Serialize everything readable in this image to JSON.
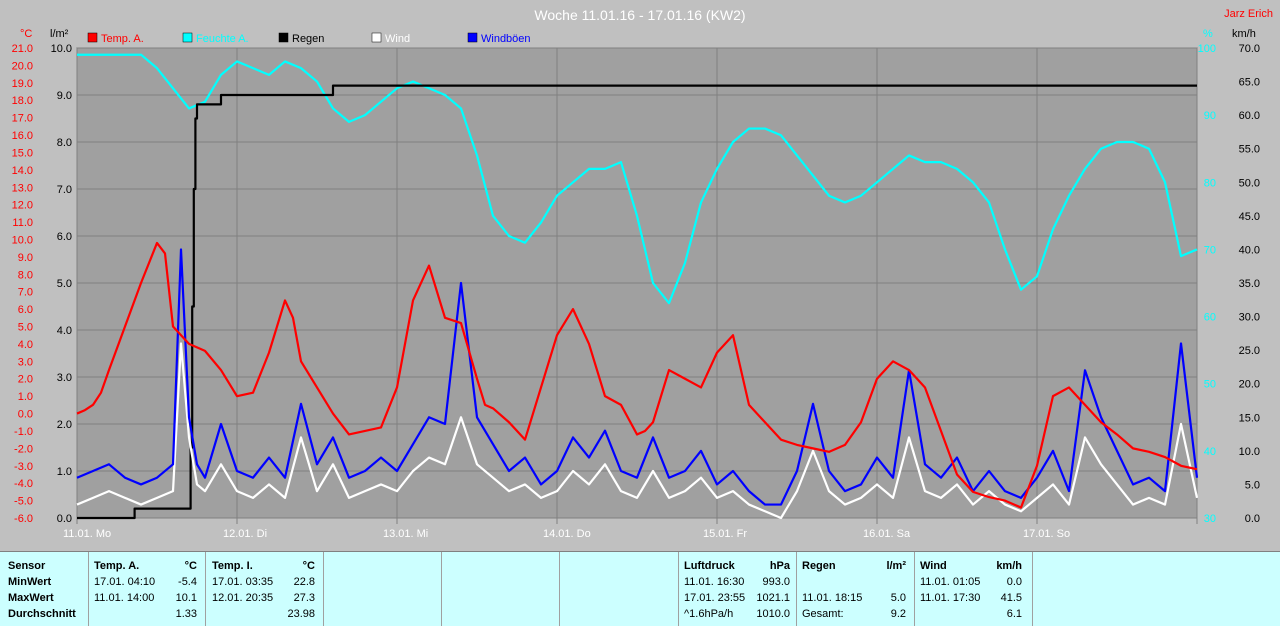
{
  "chart_data": {
    "type": "line",
    "title": "Woche 11.01.16 - 17.01.16 (KW2)",
    "author": "Jarz Erich",
    "x_labels": [
      "11.01. Mo",
      "12.01. Di",
      "13.01. Mi",
      "14.01. Do",
      "15.01. Fr",
      "16.01. Sa",
      "17.01. So"
    ],
    "axes": {
      "temp": {
        "unit": "°C",
        "ylim": [
          -6,
          21
        ],
        "ticks": [
          21,
          20,
          19,
          18,
          17,
          16,
          15,
          14,
          13,
          12,
          11,
          10,
          9,
          8,
          7,
          6,
          5,
          4,
          3,
          2,
          1,
          0,
          -1,
          -2,
          -3,
          -4,
          -5,
          -6
        ],
        "color": "#ff0000"
      },
      "rain": {
        "unit": "l/m²",
        "ylim": [
          0,
          10
        ],
        "ticks": [
          "10.0",
          "9.0",
          "8.0",
          "7.0",
          "6.0",
          "5.0",
          "4.0",
          "3.0",
          "2.0",
          "1.0",
          "0.0"
        ],
        "color": "#000000"
      },
      "humidity": {
        "unit": "%",
        "ylim": [
          30,
          100
        ],
        "ticks": [
          100,
          90,
          80,
          70,
          60,
          50,
          40,
          30
        ],
        "color": "#00ffff"
      },
      "wind": {
        "unit": "km/h",
        "ylim": [
          0,
          70
        ],
        "ticks": [
          "70.0",
          "65.0",
          "60.0",
          "55.0",
          "50.0",
          "45.0",
          "40.0",
          "35.0",
          "30.0",
          "25.0",
          "20.0",
          "15.0",
          "10.0",
          "5.0",
          "0.0"
        ],
        "color": "#000000"
      }
    },
    "legend": [
      {
        "name": "Temp. A.",
        "color": "#ff0000"
      },
      {
        "name": "Feuchte A.",
        "color": "#00ffff"
      },
      {
        "name": "Regen",
        "color": "#000000"
      },
      {
        "name": "Wind",
        "color": "#ffffff"
      },
      {
        "name": "Windböen",
        "color": "#0000ff"
      }
    ],
    "series": [
      {
        "name": "Temp. A.",
        "axis": "temp",
        "color": "#ff0000",
        "x": [
          0,
          0.05,
          0.1,
          0.15,
          0.2,
          0.3,
          0.4,
          0.5,
          0.55,
          0.6,
          0.7,
          0.8,
          0.9,
          1.0,
          1.1,
          1.2,
          1.3,
          1.35,
          1.4,
          1.5,
          1.6,
          1.7,
          1.8,
          1.9,
          2.0,
          2.1,
          2.2,
          2.3,
          2.4,
          2.5,
          2.55,
          2.6,
          2.7,
          2.8,
          2.9,
          3.0,
          3.1,
          3.2,
          3.3,
          3.4,
          3.5,
          3.55,
          3.6,
          3.7,
          3.8,
          3.9,
          4.0,
          4.1,
          4.2,
          4.3,
          4.4,
          4.5,
          4.6,
          4.7,
          4.8,
          4.9,
          5.0,
          5.1,
          5.2,
          5.3,
          5.4,
          5.5,
          5.6,
          5.7,
          5.8,
          5.9,
          6.0,
          6.1,
          6.2,
          6.3,
          6.4,
          6.5,
          6.6,
          6.7,
          6.8,
          6.9,
          7.0
        ],
        "values": [
          0.0,
          0.2,
          0.5,
          1.2,
          2.5,
          5.0,
          7.5,
          9.8,
          9.2,
          5.0,
          4.0,
          3.6,
          2.5,
          1.0,
          1.2,
          3.5,
          6.5,
          5.5,
          3.0,
          1.5,
          0.0,
          -1.2,
          -1.0,
          -0.8,
          1.5,
          6.5,
          8.5,
          5.5,
          5.2,
          2.0,
          0.5,
          0.3,
          -0.5,
          -1.5,
          1.5,
          4.5,
          6.0,
          4.0,
          1.0,
          0.5,
          -1.2,
          -1.0,
          -0.5,
          2.5,
          2.0,
          1.5,
          3.5,
          4.5,
          0.5,
          -0.5,
          -1.5,
          -1.8,
          -2.0,
          -2.2,
          -1.8,
          -0.5,
          2.0,
          3.0,
          2.5,
          1.5,
          -1.0,
          -3.5,
          -4.5,
          -4.8,
          -5.0,
          -5.4,
          -3.0,
          1.0,
          1.5,
          0.5,
          -0.5,
          -1.2,
          -2.0,
          -2.2,
          -2.5,
          -3.0,
          -3.2
        ]
      },
      {
        "name": "Feuchte A.",
        "axis": "humidity",
        "color": "#00ffff",
        "x": [
          0,
          0.1,
          0.2,
          0.3,
          0.4,
          0.5,
          0.6,
          0.7,
          0.8,
          0.9,
          1.0,
          1.1,
          1.2,
          1.3,
          1.4,
          1.5,
          1.6,
          1.7,
          1.8,
          1.9,
          2.0,
          2.1,
          2.2,
          2.3,
          2.4,
          2.5,
          2.6,
          2.7,
          2.8,
          2.9,
          3.0,
          3.1,
          3.2,
          3.3,
          3.4,
          3.5,
          3.6,
          3.7,
          3.8,
          3.9,
          4.0,
          4.1,
          4.2,
          4.3,
          4.4,
          4.5,
          4.6,
          4.7,
          4.8,
          4.9,
          5.0,
          5.1,
          5.2,
          5.3,
          5.4,
          5.5,
          5.6,
          5.7,
          5.8,
          5.9,
          6.0,
          6.1,
          6.2,
          6.3,
          6.4,
          6.5,
          6.6,
          6.7,
          6.8,
          6.9,
          7.0
        ],
        "values": [
          99,
          99,
          99,
          99,
          99,
          97,
          94,
          91,
          92,
          96,
          98,
          97,
          96,
          98,
          97,
          95,
          91,
          89,
          90,
          92,
          94,
          95,
          94,
          93,
          91,
          84,
          75,
          72,
          71,
          74,
          78,
          80,
          82,
          82,
          83,
          75,
          65,
          62,
          68,
          77,
          82,
          86,
          88,
          88,
          87,
          84,
          81,
          78,
          77,
          78,
          80,
          82,
          84,
          83,
          83,
          82,
          80,
          77,
          70,
          64,
          66,
          73,
          78,
          82,
          85,
          86,
          86,
          85,
          80,
          69,
          70
        ]
      },
      {
        "name": "Regen",
        "axis": "rain",
        "color": "#000000",
        "x": [
          0,
          0.35,
          0.36,
          0.7,
          0.71,
          0.72,
          0.73,
          0.74,
          0.75,
          0.8,
          0.9,
          1.0,
          1.1,
          1.2,
          1.3,
          1.35,
          1.5,
          1.6,
          1.7,
          1.8,
          1.9,
          2.0,
          3.0,
          4.0,
          5.0,
          6.0,
          7.0
        ],
        "values": [
          0.0,
          0.0,
          0.2,
          0.2,
          1.5,
          4.5,
          7.0,
          8.5,
          8.8,
          8.8,
          9.0,
          9.0,
          9.0,
          9.0,
          9.0,
          9.0,
          9.0,
          9.2,
          9.2,
          9.2,
          9.2,
          9.2,
          9.2,
          9.2,
          9.2,
          9.2,
          9.2
        ]
      },
      {
        "name": "Wind",
        "axis": "wind",
        "color": "#ffffff",
        "x": [
          0,
          0.1,
          0.2,
          0.3,
          0.4,
          0.5,
          0.6,
          0.65,
          0.7,
          0.75,
          0.8,
          0.9,
          1.0,
          1.1,
          1.2,
          1.3,
          1.4,
          1.5,
          1.6,
          1.7,
          1.8,
          1.9,
          2.0,
          2.1,
          2.2,
          2.3,
          2.4,
          2.5,
          2.6,
          2.7,
          2.8,
          2.9,
          3.0,
          3.1,
          3.2,
          3.3,
          3.4,
          3.5,
          3.6,
          3.7,
          3.8,
          3.9,
          4.0,
          4.1,
          4.2,
          4.3,
          4.4,
          4.5,
          4.6,
          4.7,
          4.8,
          4.9,
          5.0,
          5.1,
          5.2,
          5.3,
          5.4,
          5.5,
          5.6,
          5.7,
          5.8,
          5.9,
          6.0,
          6.1,
          6.2,
          6.3,
          6.4,
          6.5,
          6.6,
          6.7,
          6.8,
          6.9,
          7.0
        ],
        "values": [
          2,
          3,
          4,
          3,
          2,
          3,
          4,
          26,
          12,
          5,
          4,
          8,
          4,
          3,
          5,
          3,
          12,
          4,
          8,
          3,
          4,
          5,
          4,
          7,
          9,
          8,
          15,
          8,
          6,
          4,
          5,
          3,
          4,
          7,
          5,
          8,
          4,
          3,
          7,
          3,
          4,
          6,
          3,
          4,
          2,
          1,
          0,
          4,
          10,
          4,
          2,
          3,
          5,
          3,
          12,
          4,
          3,
          5,
          2,
          4,
          2,
          1,
          3,
          5,
          2,
          12,
          8,
          5,
          2,
          3,
          2,
          14,
          3
        ]
      },
      {
        "name": "Windböen",
        "axis": "wind",
        "color": "#0000ff",
        "x": [
          0,
          0.1,
          0.2,
          0.3,
          0.4,
          0.5,
          0.6,
          0.65,
          0.7,
          0.75,
          0.8,
          0.9,
          1.0,
          1.1,
          1.2,
          1.3,
          1.4,
          1.5,
          1.6,
          1.7,
          1.8,
          1.9,
          2.0,
          2.1,
          2.2,
          2.3,
          2.4,
          2.5,
          2.6,
          2.7,
          2.8,
          2.9,
          3.0,
          3.1,
          3.2,
          3.3,
          3.4,
          3.5,
          3.6,
          3.7,
          3.8,
          3.9,
          4.0,
          4.1,
          4.2,
          4.3,
          4.4,
          4.5,
          4.6,
          4.7,
          4.8,
          4.9,
          5.0,
          5.1,
          5.2,
          5.3,
          5.4,
          5.5,
          5.6,
          5.7,
          5.8,
          5.9,
          6.0,
          6.1,
          6.2,
          6.3,
          6.4,
          6.5,
          6.6,
          6.7,
          6.8,
          6.9,
          7.0
        ],
        "values": [
          6,
          7,
          8,
          6,
          5,
          6,
          8,
          40,
          15,
          8,
          6,
          14,
          7,
          6,
          9,
          6,
          17,
          8,
          12,
          6,
          7,
          9,
          7,
          11,
          15,
          14,
          35,
          15,
          11,
          7,
          9,
          5,
          7,
          12,
          9,
          13,
          7,
          6,
          12,
          6,
          7,
          10,
          5,
          7,
          4,
          2,
          2,
          7,
          17,
          7,
          4,
          5,
          9,
          6,
          22,
          8,
          6,
          9,
          4,
          7,
          4,
          3,
          6,
          10,
          4,
          22,
          15,
          10,
          5,
          6,
          4,
          26,
          6
        ]
      }
    ]
  },
  "table": {
    "sensor": {
      "header": "Sensor",
      "rows": [
        "MinWert",
        "MaxWert",
        "Durchschnitt"
      ]
    },
    "temp_a": {
      "header": "Temp. A.",
      "unit": "°C",
      "rows": [
        {
          "time": "17.01.  04:10",
          "value": "-5.4"
        },
        {
          "time": "11.01.  14:00",
          "value": "10.1"
        },
        {
          "time": "",
          "value": "1.33"
        }
      ]
    },
    "temp_i": {
      "header": "Temp. I.",
      "unit": "°C",
      "rows": [
        {
          "time": "17.01.  03:35",
          "value": "22.8"
        },
        {
          "time": "12.01.  20:35",
          "value": "27.3"
        },
        {
          "time": "",
          "value": "23.98"
        }
      ]
    },
    "luftdruck": {
      "header": "Luftdruck",
      "unit": "hPa",
      "rows": [
        {
          "time": "11.01.  16:30",
          "value": "993.0"
        },
        {
          "time": "17.01.  23:55",
          "value": "1021.1"
        },
        {
          "time": "^1.6hPa/h",
          "value": "1010.0"
        }
      ]
    },
    "regen": {
      "header": "Regen",
      "unit": "l/m²",
      "rows": [
        {
          "time": "",
          "value": ""
        },
        {
          "time": "11.01.  18:15",
          "value": "5.0"
        },
        {
          "time": "Gesamt:",
          "value": "9.2"
        }
      ]
    },
    "wind": {
      "header": "Wind",
      "unit": "km/h",
      "rows": [
        {
          "time": "11.01.  01:05",
          "value": "0.0"
        },
        {
          "time": "11.01.  17:30",
          "value": "41.5"
        },
        {
          "time": "",
          "value": "6.1"
        }
      ]
    }
  }
}
